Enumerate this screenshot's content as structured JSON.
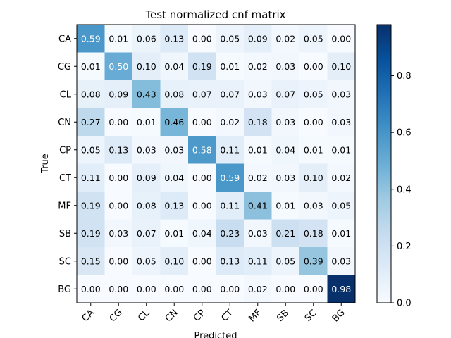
{
  "chart_data": {
    "type": "heatmap",
    "title": "Test normalized cnf matrix",
    "xlabel": "Predicted",
    "ylabel": "True",
    "x_categories": [
      "CA",
      "CG",
      "CL",
      "CN",
      "CP",
      "CT",
      "MF",
      "SB",
      "SC",
      "BG"
    ],
    "y_categories": [
      "CA",
      "CG",
      "CL",
      "CN",
      "CP",
      "CT",
      "MF",
      "SB",
      "SC",
      "BG"
    ],
    "values": [
      [
        0.59,
        0.01,
        0.06,
        0.13,
        0.0,
        0.05,
        0.09,
        0.02,
        0.05,
        0.0
      ],
      [
        0.01,
        0.5,
        0.1,
        0.04,
        0.19,
        0.01,
        0.02,
        0.03,
        0.0,
        0.1
      ],
      [
        0.08,
        0.09,
        0.43,
        0.08,
        0.07,
        0.07,
        0.03,
        0.07,
        0.05,
        0.03
      ],
      [
        0.27,
        0.0,
        0.01,
        0.46,
        0.0,
        0.02,
        0.18,
        0.03,
        0.0,
        0.03
      ],
      [
        0.05,
        0.13,
        0.03,
        0.03,
        0.58,
        0.11,
        0.01,
        0.04,
        0.01,
        0.01
      ],
      [
        0.11,
        0.0,
        0.09,
        0.04,
        0.0,
        0.59,
        0.02,
        0.03,
        0.1,
        0.02
      ],
      [
        0.19,
        0.0,
        0.08,
        0.13,
        0.0,
        0.11,
        0.41,
        0.01,
        0.03,
        0.05
      ],
      [
        0.19,
        0.03,
        0.07,
        0.01,
        0.04,
        0.23,
        0.03,
        0.21,
        0.18,
        0.01
      ],
      [
        0.15,
        0.0,
        0.05,
        0.1,
        0.0,
        0.13,
        0.11,
        0.05,
        0.39,
        0.03
      ],
      [
        0.0,
        0.0,
        0.0,
        0.0,
        0.0,
        0.0,
        0.02,
        0.0,
        0.0,
        0.98
      ]
    ],
    "colormap": "Blues",
    "color_range": [
      0.0,
      0.98
    ],
    "colorbar_ticks": [
      "0.0",
      "0.2",
      "0.4",
      "0.6",
      "0.8"
    ],
    "colorbar_tick_values": [
      0.0,
      0.2,
      0.4,
      0.6,
      0.8
    ],
    "grid": false
  }
}
